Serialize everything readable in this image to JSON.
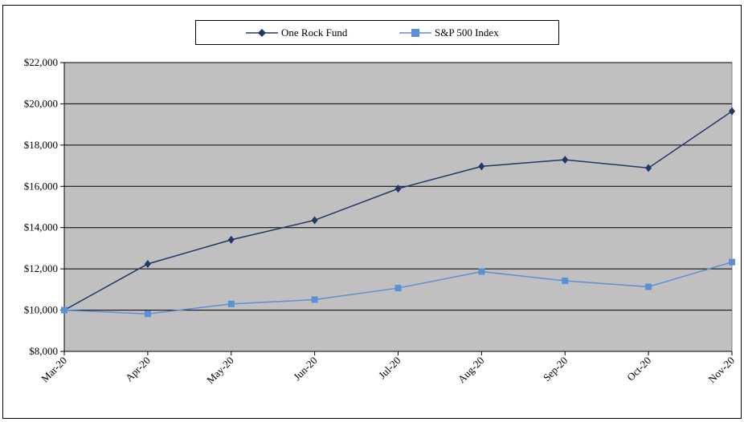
{
  "chart_data": {
    "type": "line",
    "title": "",
    "xlabel": "",
    "ylabel": "",
    "categories": [
      "Mar-20",
      "Apr-20",
      "May-20",
      "Jun-20",
      "Jul-20",
      "Aug-20",
      "Sep-20",
      "Oct-20",
      "Nov-20"
    ],
    "ylim": [
      8000,
      22000
    ],
    "yticks": [
      8000,
      10000,
      12000,
      14000,
      16000,
      18000,
      20000,
      22000
    ],
    "ytick_labels": [
      "$8,000",
      "$10,000",
      "$12,000",
      "$14,000",
      "$16,000",
      "$18,000",
      "$20,000",
      "$22,000"
    ],
    "grid": true,
    "legend_position": "top",
    "plot_background": "#c0c0c0",
    "series": [
      {
        "name": "One Rock Fund",
        "color": "#1f3864",
        "marker": "diamond",
        "values": [
          10000,
          12240,
          13410,
          14360,
          15890,
          16970,
          17290,
          16890,
          19640
        ]
      },
      {
        "name": "S&P 500 Index",
        "color": "#5b8fd6",
        "marker": "square",
        "values": [
          10000,
          9820,
          10300,
          10510,
          11070,
          11870,
          11420,
          11130,
          12330
        ]
      }
    ]
  }
}
